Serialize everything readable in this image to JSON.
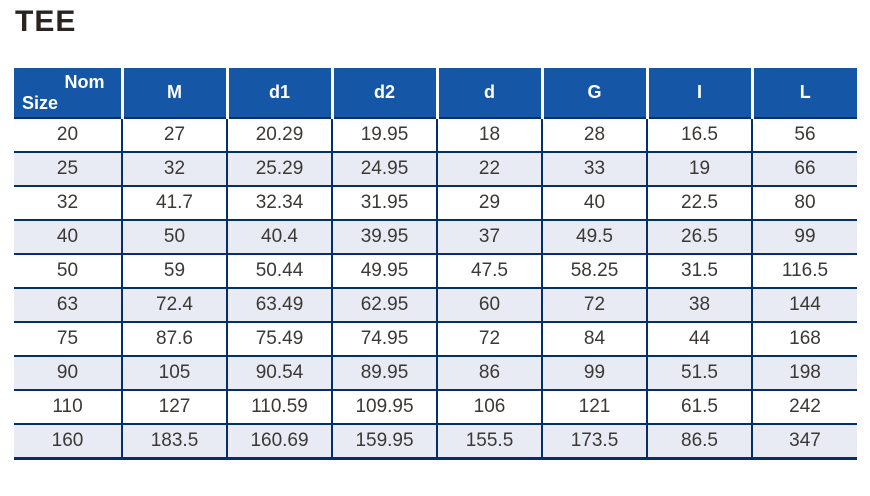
{
  "title": "TEE",
  "colors": {
    "header_background": "#1557a6",
    "border": "#032f6b",
    "alternate_row": "#e8ebf3",
    "header_text": "#ffffff",
    "body_text": "#3b3835"
  },
  "table": {
    "nom_header": {
      "line1": "Nom",
      "line2": "Size"
    },
    "columns": [
      "Nom Size",
      "M",
      "d1",
      "d2",
      "d",
      "G",
      "I",
      "L"
    ],
    "rows": [
      [
        "20",
        "27",
        "20.29",
        "19.95",
        "18",
        "28",
        "16.5",
        "56"
      ],
      [
        "25",
        "32",
        "25.29",
        "24.95",
        "22",
        "33",
        "19",
        "66"
      ],
      [
        "32",
        "41.7",
        "32.34",
        "31.95",
        "29",
        "40",
        "22.5",
        "80"
      ],
      [
        "40",
        "50",
        "40.4",
        "39.95",
        "37",
        "49.5",
        "26.5",
        "99"
      ],
      [
        "50",
        "59",
        "50.44",
        "49.95",
        "47.5",
        "58.25",
        "31.5",
        "116.5"
      ],
      [
        "63",
        "72.4",
        "63.49",
        "62.95",
        "60",
        "72",
        "38",
        "144"
      ],
      [
        "75",
        "87.6",
        "75.49",
        "74.95",
        "72",
        "84",
        "44",
        "168"
      ],
      [
        "90",
        "105",
        "90.54",
        "89.95",
        "86",
        "99",
        "51.5",
        "198"
      ],
      [
        "110",
        "127",
        "110.59",
        "109.95",
        "106",
        "121",
        "61.5",
        "242"
      ],
      [
        "160",
        "183.5",
        "160.69",
        "159.95",
        "155.5",
        "173.5",
        "86.5",
        "347"
      ]
    ]
  }
}
